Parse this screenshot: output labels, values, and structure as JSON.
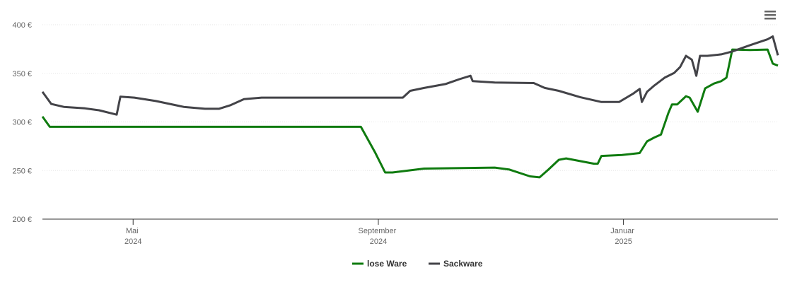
{
  "chart_data": {
    "type": "line",
    "xlim": [
      2024.21,
      2025.21
    ],
    "xticks": [
      {
        "value": 2024.3333,
        "label": "Mai 2024"
      },
      {
        "value": 2024.6667,
        "label": "September 2024"
      },
      {
        "value": 2025.0,
        "label": "Januar 2025"
      }
    ],
    "ylim": [
      200,
      400
    ],
    "yticks": [
      {
        "value": 200,
        "label": "200 €"
      },
      {
        "value": 250,
        "label": "250 €"
      },
      {
        "value": 300,
        "label": "300 €"
      },
      {
        "value": 350,
        "label": "350 €"
      },
      {
        "value": 400,
        "label": "400 €"
      }
    ],
    "grid": true,
    "legend": "bottom",
    "series": [
      {
        "name": "lose Ware",
        "color": "#0f7b0f",
        "x": [
          2024.21,
          2024.22,
          2024.643,
          2024.662,
          2024.676,
          2024.686,
          2024.729,
          2024.825,
          2024.845,
          2024.873,
          2024.886,
          2024.898,
          2024.912,
          2024.922,
          2024.96,
          2024.965,
          2024.97,
          2024.998,
          2025.022,
          2025.032,
          2025.042,
          2025.051,
          2025.061,
          2025.066,
          2025.073,
          2025.085,
          2025.09,
          2025.101,
          2025.111,
          2025.123,
          2025.133,
          2025.14,
          2025.148,
          2025.172,
          2025.196,
          2025.203,
          2025.21
        ],
        "values": [
          305.5,
          295,
          295,
          269,
          248,
          248,
          252,
          253,
          251,
          244,
          243,
          251,
          261,
          262.5,
          257,
          257,
          265,
          266,
          268,
          280,
          284,
          287,
          309,
          318,
          318,
          326.5,
          325,
          310.5,
          334.5,
          339.5,
          342,
          345.5,
          374.5,
          374,
          374.5,
          360,
          358
        ]
      },
      {
        "name": "Sackware",
        "color": "#434348",
        "x": [
          2024.21,
          2024.222,
          2024.239,
          2024.268,
          2024.287,
          2024.311,
          2024.316,
          2024.335,
          2024.364,
          2024.402,
          2024.431,
          2024.45,
          2024.465,
          2024.484,
          2024.508,
          2024.7,
          2024.71,
          2024.729,
          2024.758,
          2024.777,
          2024.792,
          2024.795,
          2024.825,
          2024.878,
          2024.893,
          2024.912,
          2024.941,
          2024.97,
          2024.994,
          2025.013,
          2025.022,
          2025.025,
          2025.032,
          2025.042,
          2025.056,
          2025.069,
          2025.077,
          2025.085,
          2025.093,
          2025.099,
          2025.104,
          2025.114,
          2025.133,
          2025.148,
          2025.172,
          2025.196,
          2025.203,
          2025.21
        ],
        "values": [
          331,
          318.5,
          315.5,
          314,
          312,
          307.5,
          326,
          325,
          321.5,
          315.5,
          313.5,
          313.5,
          317,
          323.5,
          325,
          325,
          332,
          335,
          339,
          344,
          347.5,
          342,
          340.5,
          340,
          335,
          332,
          325.5,
          320.5,
          320.5,
          329,
          334,
          320.5,
          331,
          337.5,
          345.5,
          350.5,
          356.5,
          368,
          364,
          347.5,
          368,
          368,
          369.5,
          372.5,
          379,
          385,
          388,
          368.5
        ]
      }
    ]
  }
}
